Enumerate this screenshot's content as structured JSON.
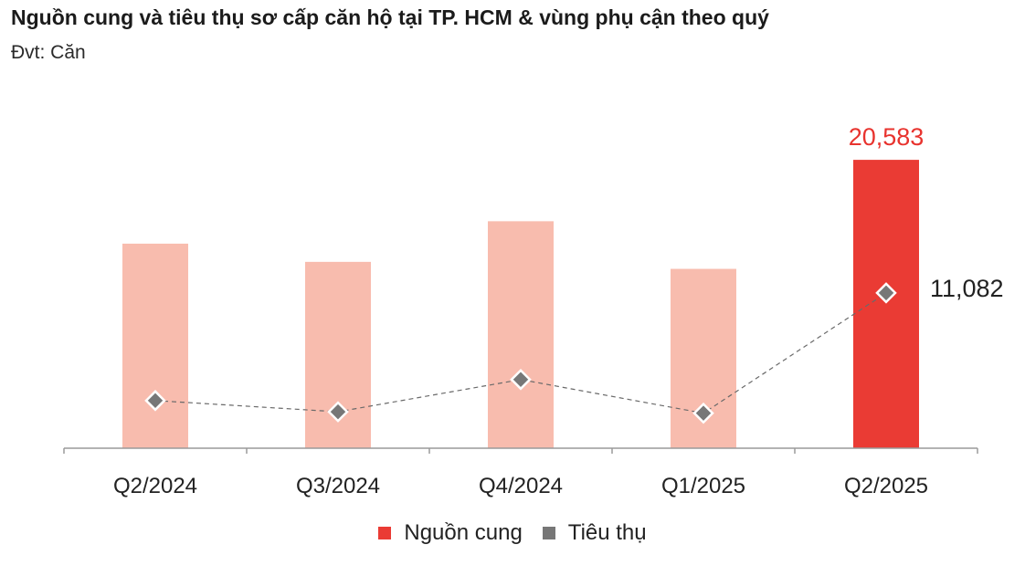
{
  "title": "Nguồn cung và tiêu thụ sơ cấp căn hộ tại TP. HCM & vùng phụ cận theo quý",
  "subtitle": "Đvt: Căn",
  "colors": {
    "supply_past": "#f8bcae",
    "supply_current": "#ea3b34",
    "sales_marker": "#777777",
    "sales_line": "#6a6a6a",
    "axis": "#9a9a9a",
    "supply_label": "#e8332e",
    "sales_label": "#222222"
  },
  "chart_data": {
    "type": "bar",
    "categories": [
      "Q2/2024",
      "Q3/2024",
      "Q4/2024",
      "Q1/2025",
      "Q2/2025"
    ],
    "series": [
      {
        "name": "Nguồn cung",
        "type": "bar",
        "values": [
          14600,
          13300,
          16200,
          12800,
          20583
        ]
      },
      {
        "name": "Tiêu thụ",
        "type": "line",
        "style": "dashed",
        "marker": "diamond",
        "values": [
          3400,
          2600,
          4900,
          2500,
          11082
        ]
      }
    ],
    "data_labels": {
      "Nguồn cung": [
        "",
        "",
        "",
        "",
        "20,583"
      ],
      "Tiêu thụ": [
        "",
        "",
        "",
        "",
        "11,082"
      ]
    },
    "highlight_index": 4,
    "ylim": [
      0,
      23000
    ],
    "grid": false,
    "legend_position": "bottom"
  }
}
